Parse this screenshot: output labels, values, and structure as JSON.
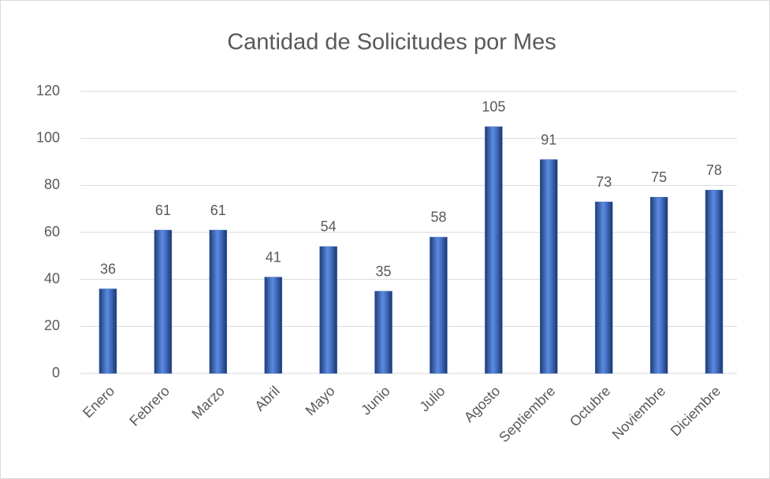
{
  "chart_data": {
    "type": "bar",
    "title": "Cantidad de Solicitudes por Mes",
    "categories": [
      "Enero",
      "Febrero",
      "Marzo",
      "Abril",
      "Mayo",
      "Junio",
      "Julio",
      "Agosto",
      "Septiembre",
      "Octubre",
      "Noviembre",
      "Diciembre"
    ],
    "values": [
      36,
      61,
      61,
      41,
      54,
      35,
      58,
      105,
      91,
      73,
      75,
      78
    ],
    "color": "#4472c4",
    "data_labels": true,
    "ylim": [
      0,
      120
    ],
    "yticks": [
      0,
      20,
      40,
      60,
      80,
      100,
      120
    ],
    "grid": true
  }
}
